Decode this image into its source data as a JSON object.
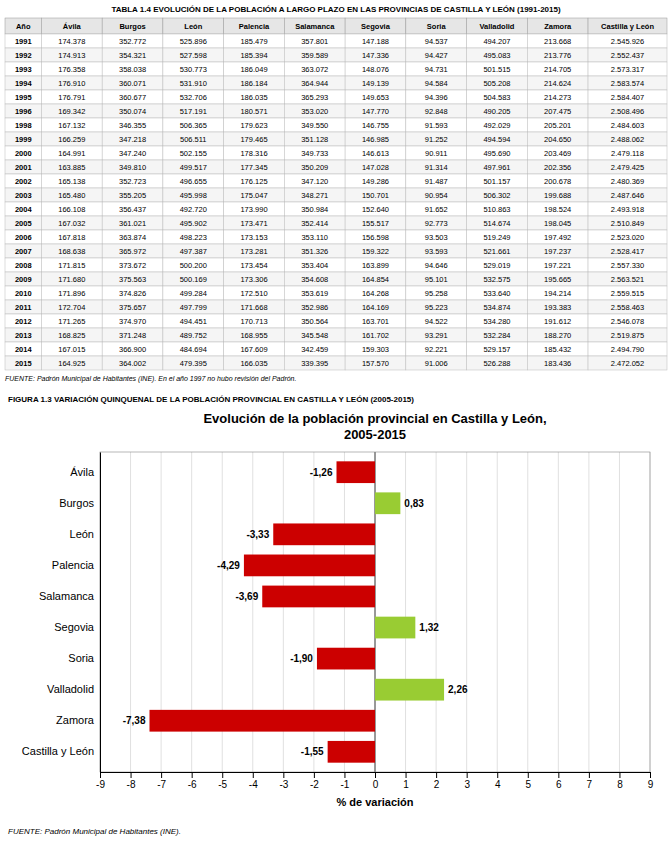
{
  "chart_data": [
    {
      "type": "table",
      "title": "TABLA 1.4 EVOLUCIÓN DE LA POBLACIÓN A LARGO PLAZO EN LAS PROVINCIAS DE CASTILLA Y LEÓN (1991-2015)",
      "columns": [
        "Año",
        "Ávila",
        "Burgos",
        "León",
        "Palencia",
        "Salamanca",
        "Segovia",
        "Soria",
        "Valladolid",
        "Zamora",
        "Castilla y León"
      ],
      "rows": [
        [
          "1991",
          "174.378",
          "352.772",
          "525.896",
          "185.479",
          "357.801",
          "147.188",
          "94.537",
          "494.207",
          "213.668",
          "2.545.926"
        ],
        [
          "1992",
          "174.913",
          "354.321",
          "527.598",
          "185.394",
          "359.589",
          "147.336",
          "94.427",
          "495.083",
          "213.776",
          "2.552.437"
        ],
        [
          "1993",
          "176.358",
          "358.038",
          "530.773",
          "186.049",
          "363.072",
          "148.076",
          "94.731",
          "501.515",
          "214.705",
          "2.573.317"
        ],
        [
          "1994",
          "176.910",
          "360.071",
          "531.910",
          "186.184",
          "364.944",
          "149.139",
          "94.584",
          "505.208",
          "214.624",
          "2.583.574"
        ],
        [
          "1995",
          "176.791",
          "360.677",
          "532.706",
          "186.035",
          "365.293",
          "149.653",
          "94.396",
          "504.583",
          "214.273",
          "2.584.407"
        ],
        [
          "1996",
          "169.342",
          "350.074",
          "517.191",
          "180.571",
          "353.020",
          "147.770",
          "92.848",
          "490.205",
          "207.475",
          "2.508.496"
        ],
        [
          "1998",
          "167.132",
          "346.355",
          "506.365",
          "179.623",
          "349.550",
          "146.755",
          "91.593",
          "492.029",
          "205.201",
          "2.484.603"
        ],
        [
          "1999",
          "166.259",
          "347.218",
          "506.511",
          "179.465",
          "351.128",
          "146.985",
          "91.252",
          "494.594",
          "204.650",
          "2.488.062"
        ],
        [
          "2000",
          "164.991",
          "347.240",
          "502.155",
          "178.316",
          "349.733",
          "146.613",
          "90.911",
          "495.690",
          "203.469",
          "2.479.118"
        ],
        [
          "2001",
          "163.885",
          "349.810",
          "499.517",
          "177.345",
          "350.209",
          "147.028",
          "91.314",
          "497.961",
          "202.356",
          "2.479.425"
        ],
        [
          "2002",
          "165.138",
          "352.723",
          "496.655",
          "176.125",
          "347.120",
          "149.286",
          "91.487",
          "501.157",
          "200.678",
          "2.480.369"
        ],
        [
          "2003",
          "165.480",
          "355.205",
          "495.998",
          "175.047",
          "348.271",
          "150.701",
          "90.954",
          "506.302",
          "199.688",
          "2.487.646"
        ],
        [
          "2004",
          "166.108",
          "356.437",
          "492.720",
          "173.990",
          "350.984",
          "152.640",
          "91.652",
          "510.863",
          "198.524",
          "2.493.918"
        ],
        [
          "2005",
          "167.032",
          "361.021",
          "495.902",
          "173.471",
          "352.414",
          "155.517",
          "92.773",
          "514.674",
          "198.045",
          "2.510.849"
        ],
        [
          "2006",
          "167.818",
          "363.874",
          "498.223",
          "173.153",
          "353.110",
          "156.598",
          "93.503",
          "519.249",
          "197.492",
          "2.523.020"
        ],
        [
          "2007",
          "168.638",
          "365.972",
          "497.387",
          "173.281",
          "351.326",
          "159.322",
          "93.593",
          "521.661",
          "197.237",
          "2.528.417"
        ],
        [
          "2008",
          "171.815",
          "373.672",
          "500.200",
          "173.454",
          "353.404",
          "163.899",
          "94.646",
          "529.019",
          "197.221",
          "2.557.330"
        ],
        [
          "2009",
          "171.680",
          "375.563",
          "500.169",
          "173.306",
          "354.608",
          "164.854",
          "95.101",
          "532.575",
          "195.665",
          "2.563.521"
        ],
        [
          "2010",
          "171.896",
          "374.826",
          "499.284",
          "172.510",
          "353.619",
          "164.268",
          "95.258",
          "533.640",
          "194.214",
          "2.559.515"
        ],
        [
          "2011",
          "172.704",
          "375.657",
          "497.799",
          "171.668",
          "352.986",
          "164.169",
          "95.223",
          "534.874",
          "193.383",
          "2.558.463"
        ],
        [
          "2012",
          "171.265",
          "374.970",
          "494.451",
          "170.713",
          "350.564",
          "163.701",
          "94.522",
          "534.280",
          "191.612",
          "2.546.078"
        ],
        [
          "2013",
          "168.825",
          "371.248",
          "489.752",
          "168.955",
          "345.548",
          "161.702",
          "93.291",
          "532.284",
          "188.270",
          "2.519.875"
        ],
        [
          "2014",
          "167.015",
          "366.900",
          "484.694",
          "167.609",
          "342.459",
          "159.303",
          "92.221",
          "529.157",
          "185.432",
          "2.494.790"
        ],
        [
          "2015",
          "164.925",
          "364.002",
          "479.395",
          "166.035",
          "339.395",
          "157.570",
          "91.006",
          "526.288",
          "183.436",
          "2.472.052"
        ]
      ],
      "source": "FUENTE: Padrón Municipal de Habitantes (INE). En el año 1997 no hubo revisión del Padrón."
    },
    {
      "type": "bar",
      "caption": "FIGURA 1.3 VARIACIÓN QUINQUENAL DE LA POBLACIÓN PROVINCIAL EN CASTILLA Y LEÓN (2005-2015)",
      "title": "Evolución de la población provincial en Castilla y León,\n2005-2015",
      "orientation": "horizontal",
      "categories": [
        "Ávila",
        "Burgos",
        "León",
        "Palencia",
        "Salamanca",
        "Segovia",
        "Soria",
        "Valladolid",
        "Zamora",
        "Castilla y León"
      ],
      "values": [
        -1.26,
        0.83,
        -3.33,
        -4.29,
        -3.69,
        1.32,
        -1.9,
        2.26,
        -7.38,
        -1.55
      ],
      "value_labels": [
        "-1,26",
        "0,83",
        "-3,33",
        "-4,29",
        "-3,69",
        "1,32",
        "-1,90",
        "2,26",
        "-7,38",
        "-1,55"
      ],
      "colors": [
        "#cc0000",
        "#99cc33",
        "#cc0000",
        "#cc0000",
        "#cc0000",
        "#99cc33",
        "#cc0000",
        "#99cc33",
        "#cc0000",
        "#cc0000"
      ],
      "xlabel": "% de variación",
      "xlim": [
        -9,
        9
      ],
      "xticks": [
        -9,
        -8,
        -7,
        -6,
        -5,
        -4,
        -3,
        -2,
        -1,
        0,
        1,
        2,
        3,
        4,
        5,
        6,
        7,
        8,
        9
      ],
      "grid": true,
      "data_labels": true,
      "source": "FUENTE: Padrón Municipal de Habitantes (INE)."
    }
  ]
}
